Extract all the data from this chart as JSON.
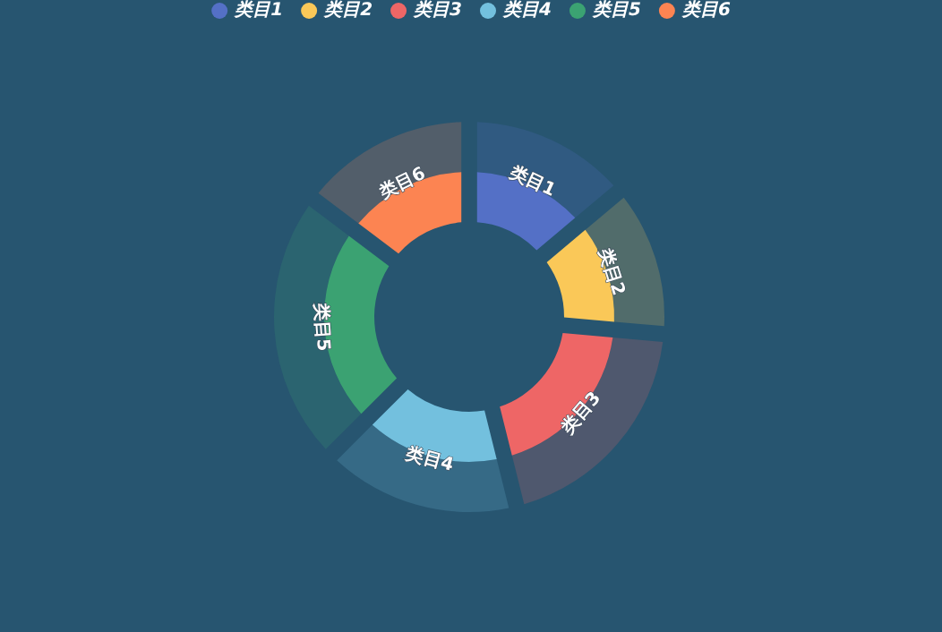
{
  "chart_data": {
    "type": "donut",
    "categories": [
      "类目1",
      "类目2",
      "类目3",
      "类目4",
      "类目5",
      "类目6"
    ],
    "series": [
      {
        "values": [
          13.9,
          12.5,
          19.7,
          16.4,
          22.8,
          14.7
        ],
        "colors": [
          "#305a81",
          "#516c6b",
          "#4f586e",
          "#366a86",
          "#2b6470",
          "#525e6a"
        ]
      },
      {
        "values": [
          13.9,
          12.5,
          19.7,
          16.4,
          22.8,
          14.7
        ],
        "colors": [
          "#5470c6",
          "#fac858",
          "#ee6666",
          "#73c0de",
          "#3ba272",
          "#fc8452"
        ]
      }
    ],
    "legend": "top"
  }
}
